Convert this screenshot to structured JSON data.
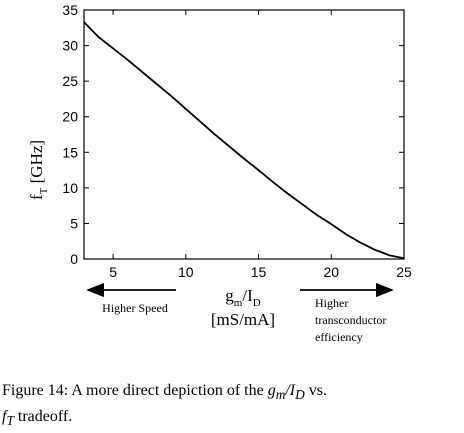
{
  "chart_data": {
    "type": "line",
    "xlim": [
      3,
      25
    ],
    "ylim": [
      0,
      35
    ],
    "xticks": [
      5,
      10,
      15,
      20,
      25
    ],
    "yticks": [
      0,
      5,
      10,
      15,
      20,
      25,
      30,
      35
    ],
    "ylabel": "f_T [GHz]",
    "xlabel_line1": "g_m/I_D",
    "xlabel_line2": "[mS/mA]",
    "series": [
      {
        "x": [
          3,
          4,
          5,
          6,
          7,
          8,
          9,
          10,
          11,
          12,
          13,
          14,
          15,
          16,
          17,
          18,
          19,
          20,
          21,
          22,
          23,
          24,
          25
        ],
        "y": [
          33.3,
          31.2,
          29.6,
          28.0,
          26.3,
          24.6,
          22.9,
          21.1,
          19.3,
          17.5,
          15.8,
          14.1,
          12.5,
          10.8,
          9.2,
          7.7,
          6.2,
          4.9,
          3.5,
          2.3,
          1.3,
          0.5,
          0.1
        ]
      }
    ],
    "annotations": {
      "left_arrow_label": "Higher Speed",
      "right_arrow_label_lines": [
        "Higher",
        "transconductor",
        "efficiency"
      ]
    }
  },
  "caption": {
    "prefix": "Figure 14: A more direct depiction of the ",
    "math1": "g",
    "math1_sub": "m",
    "math1_rest": "/I",
    "math1_sub2": "D",
    "middle": " vs.",
    "math2": "f",
    "math2_sub": "T",
    "suffix": " tradeoff."
  }
}
